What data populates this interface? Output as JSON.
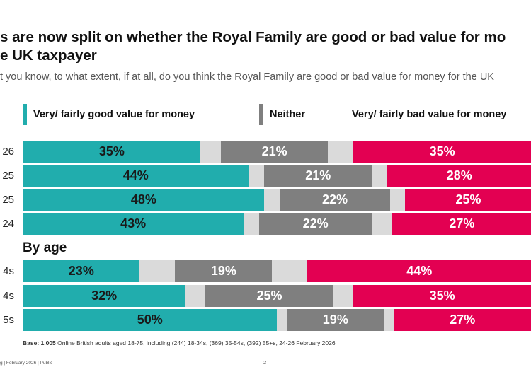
{
  "title": {
    "line1": "s are now split on whether the Royal Family are good or bad value for mo",
    "line2": "e UK taxpayer"
  },
  "question": "t you know, to what extent, if at all, do you think the Royal Family are good or bad value for money for the UK",
  "section_heading": "By age",
  "base": {
    "bold": "Base: 1,005",
    "text": "Online British adults aged 18-75, including (244) 18-34s, (369) 35-54s, (392) 55+s, 24-26 February 2026"
  },
  "footer": {
    "left": "g | February 2026 | Public",
    "page": "2"
  },
  "colors": {
    "good": "#21ADAD",
    "neither": "#7F7F7F",
    "bad": "#E30052",
    "gap": "#DADADA",
    "good_text": "#1a1a1a",
    "neither_text": "#ffffff",
    "bad_text": "#ffffff"
  },
  "chart_data": {
    "type": "bar",
    "stacked": true,
    "orientation": "horizontal",
    "legend_position": "top",
    "categories": [
      "26",
      "25",
      "25",
      "24",
      "4s",
      "4s",
      "5s"
    ],
    "series": [
      {
        "name": "Very/ fairly good value for money",
        "values": [
          35,
          44,
          48,
          43,
          23,
          32,
          50
        ],
        "labels": [
          "35%",
          "44%",
          "48%",
          "43%",
          "23%",
          "32%",
          "50%"
        ]
      },
      {
        "name": "",
        "values": [
          4,
          3,
          3,
          3,
          7,
          4,
          2
        ]
      },
      {
        "name": "Neither",
        "values": [
          21,
          21,
          22,
          22,
          19,
          25,
          19
        ],
        "labels": [
          "21%",
          "21%",
          "22%",
          "22%",
          "19%",
          "25%",
          "19%"
        ]
      },
      {
        "name": "",
        "values": [
          5,
          3,
          3,
          4,
          7,
          4,
          2
        ]
      },
      {
        "name": "Very/ fairly bad value for money",
        "values": [
          35,
          28,
          25,
          27,
          44,
          35,
          27
        ],
        "labels": [
          "35%",
          "28%",
          "25%",
          "27%",
          "44%",
          "35%",
          "27%"
        ]
      }
    ]
  }
}
